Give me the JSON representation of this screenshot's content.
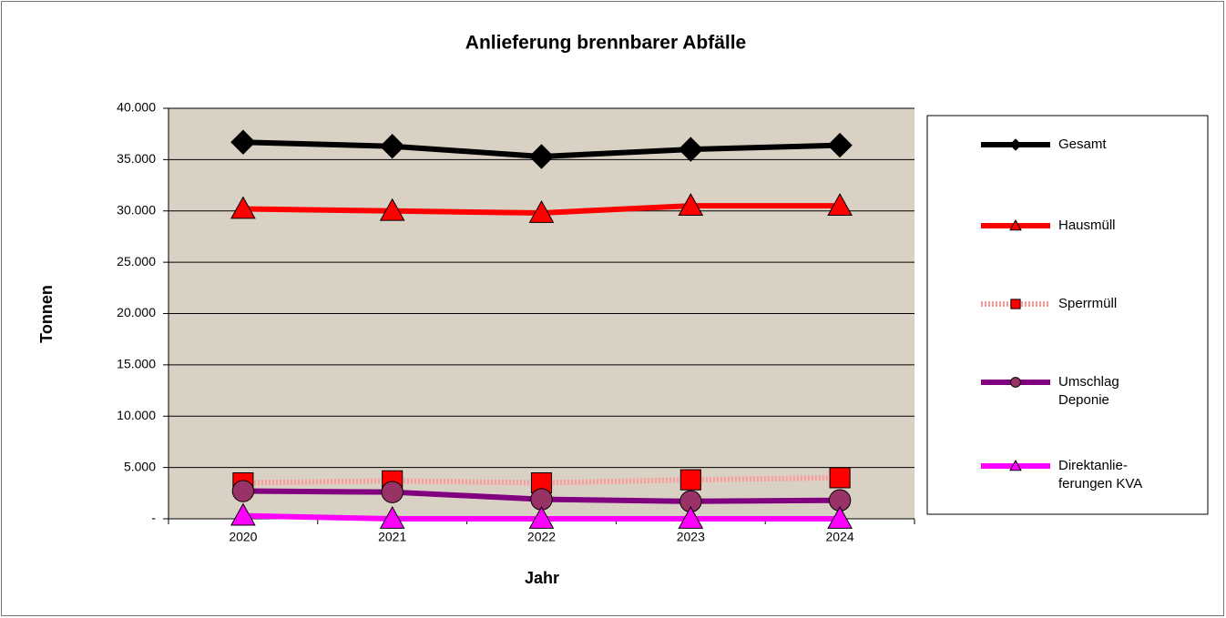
{
  "chart_data": {
    "type": "line",
    "title": "Anlieferung brennbarer Abfälle",
    "x_label": "Jahr",
    "y_label": "Tonnen",
    "categories": [
      "2020",
      "2021",
      "2022",
      "2023",
      "2024"
    ],
    "series": [
      {
        "name": "Gesamt",
        "color": "#000000",
        "marker": "diamond",
        "line": "solid",
        "values": [
          36700,
          36300,
          35300,
          36000,
          36400
        ]
      },
      {
        "name": "Hausmüll",
        "color": "#ff0000",
        "marker": "triangle",
        "line": "solid",
        "values": [
          30200,
          30000,
          29800,
          30500,
          30500
        ]
      },
      {
        "name": "Sperrmüll",
        "color": "#ff0000",
        "marker": "square",
        "line": "dotted",
        "values": [
          3500,
          3700,
          3500,
          3800,
          4000
        ]
      },
      {
        "name": "Umschlag Deponie",
        "color": "#800080",
        "marker": "circle",
        "line": "solid",
        "values": [
          2700,
          2600,
          1900,
          1700,
          1800
        ]
      },
      {
        "name": "Direktanlie-ferungen KVA",
        "color": "#ff00ff",
        "marker": "triangle",
        "line": "solid",
        "values": [
          300,
          0,
          0,
          0,
          0
        ]
      }
    ],
    "ylim": [
      0,
      40000
    ],
    "yticks": [
      {
        "value": 0,
        "label": "-"
      },
      {
        "value": 5000,
        "label": "5.000"
      },
      {
        "value": 10000,
        "label": "10.000"
      },
      {
        "value": 15000,
        "label": "15.000"
      },
      {
        "value": 20000,
        "label": "20.000"
      },
      {
        "value": 25000,
        "label": "25.000"
      },
      {
        "value": 30000,
        "label": "30.000"
      },
      {
        "value": 35000,
        "label": "35.000"
      },
      {
        "value": 40000,
        "label": "40.000"
      }
    ],
    "grid": true,
    "legend": "right"
  }
}
